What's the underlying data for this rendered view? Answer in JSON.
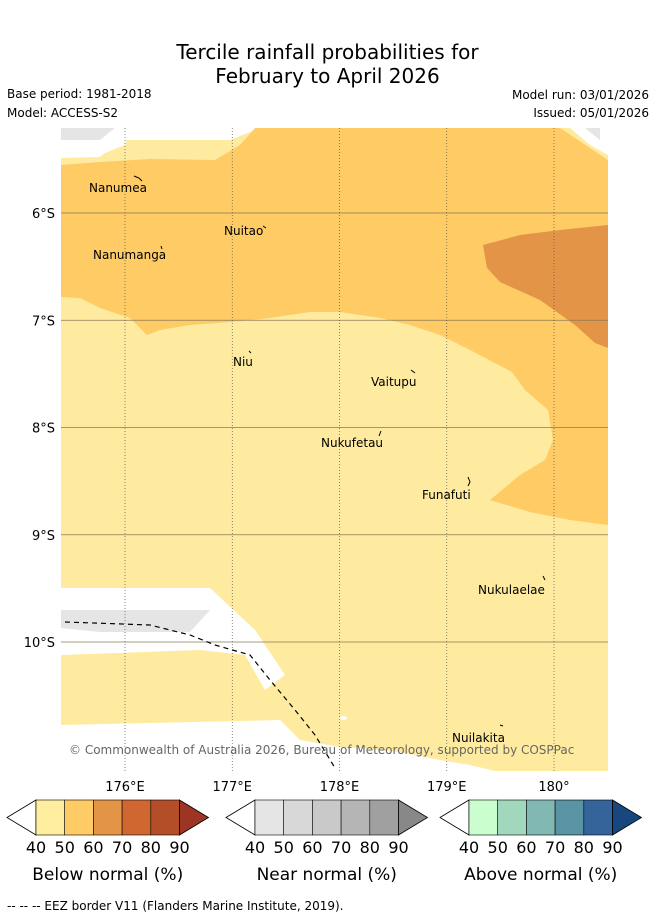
{
  "title_line1": "Tercile rainfall probabilities for",
  "title_line2": "February to April 2026",
  "base_period": "Base period: 1981-2018",
  "model": "Model: ACCESS-S2",
  "model_run": "Model run: 03/01/2026",
  "issued": "Issued: 05/01/2026",
  "copyright": "© Commonwealth of Australia 2026, Bureau of Meteorology, supported by COSPPac",
  "footer": "-- -- -- EEZ border V11 (Flanders Marine Institute, 2019).",
  "map": {
    "lat_labels": [
      {
        "text": "6°S",
        "lat": 6
      },
      {
        "text": "7°S",
        "lat": 7
      },
      {
        "text": "8°S",
        "lat": 8
      },
      {
        "text": "9°S",
        "lat": 9
      },
      {
        "text": "10°S",
        "lat": 10
      }
    ],
    "lon_labels": [
      {
        "text": "176°E",
        "lon": 176
      },
      {
        "text": "177°E",
        "lon": 177
      },
      {
        "text": "178°E",
        "lon": 178
      },
      {
        "text": "179°E",
        "lon": 179
      },
      {
        "text": "180°",
        "lon": 180
      }
    ],
    "places": [
      {
        "name": "Nanumea"
      },
      {
        "name": "Nuitao"
      },
      {
        "name": "Nanumanga"
      },
      {
        "name": "Niu"
      },
      {
        "name": "Vaitupu"
      },
      {
        "name": "Nukufetau"
      },
      {
        "name": "Funafuti"
      },
      {
        "name": "Nukulaelae"
      },
      {
        "name": "Nuilakita"
      }
    ]
  },
  "colorbars": [
    {
      "title": "Below normal (%)",
      "ticks": [
        "40",
        "50",
        "60",
        "70",
        "80",
        "90"
      ],
      "colors": [
        "#ffeda0",
        "#fecb65",
        "#e49446",
        "#d06730",
        "#b34e28",
        "#9d3525"
      ]
    },
    {
      "title": "Near normal (%)",
      "ticks": [
        "40",
        "50",
        "60",
        "70",
        "80",
        "90"
      ],
      "colors": [
        "#e5e5e5",
        "#d8d8d8",
        "#c9c9c9",
        "#b5b5b5",
        "#a0a0a0",
        "#888888"
      ]
    },
    {
      "title": "Above normal (%)",
      "ticks": [
        "40",
        "50",
        "60",
        "70",
        "80",
        "90"
      ],
      "colors": [
        "#cbfece",
        "#a1d7bd",
        "#82b8b4",
        "#5a93a3",
        "#346499",
        "#18477f"
      ]
    }
  ],
  "colors": {
    "below_40_50": "#ffeba0",
    "below_50_60": "#fecb65",
    "below_60_70": "#e49446",
    "near_40_50": "#e5e5e5"
  }
}
